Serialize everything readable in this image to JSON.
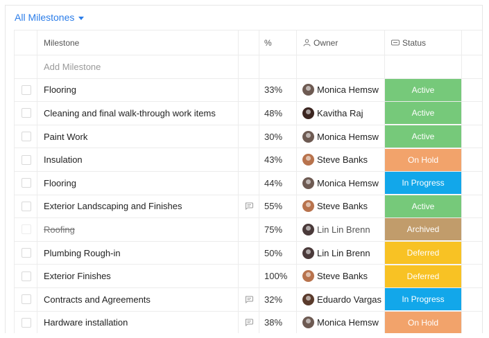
{
  "view": {
    "label": "All Milestones"
  },
  "columns": {
    "milestone": "Milestone",
    "percent": "%",
    "owner": "Owner",
    "status": "Status"
  },
  "add_placeholder": "Add Milestone",
  "colors": {
    "accent": "#2b7de9",
    "active": "#76c97a",
    "on_hold": "#f2a36b",
    "in_progress": "#12a7ea",
    "archived": "#c19c6b",
    "deferred": "#f8c224"
  },
  "rows": [
    {
      "name": "Flooring",
      "note": false,
      "percent": "33%",
      "owner": "Monica Hemsw",
      "avatar_color": "#6d5a52",
      "status": "Active",
      "status_color": "#76c97a"
    },
    {
      "name": "Cleaning and final walk-through work items",
      "note": false,
      "percent": "48%",
      "owner": "Kavitha Raj",
      "avatar_color": "#3b2520",
      "status": "Active",
      "status_color": "#76c97a"
    },
    {
      "name": "Paint Work",
      "note": false,
      "percent": "30%",
      "owner": "Monica Hemsw",
      "avatar_color": "#6d5a52",
      "status": "Active",
      "status_color": "#76c97a"
    },
    {
      "name": "Insulation",
      "note": false,
      "percent": "43%",
      "owner": "Steve Banks",
      "avatar_color": "#b8734d",
      "status": "On Hold",
      "status_color": "#f2a36b"
    },
    {
      "name": "Flooring",
      "note": false,
      "percent": "44%",
      "owner": "Monica Hemsw",
      "avatar_color": "#6d5a52",
      "status": "In Progress",
      "status_color": "#12a7ea"
    },
    {
      "name": "Exterior Landscaping and Finishes",
      "note": true,
      "percent": "55%",
      "owner": "Steve Banks",
      "avatar_color": "#b8734d",
      "status": "Active",
      "status_color": "#76c97a"
    },
    {
      "name": "Roofing",
      "note": false,
      "percent": "75%",
      "owner": "Lin Lin Brenn",
      "avatar_color": "#4a3a3a",
      "status": "Archived",
      "status_color": "#c19c6b",
      "archived": true
    },
    {
      "name": "Plumbing Rough-in",
      "note": false,
      "percent": "50%",
      "owner": "Lin Lin Brenn",
      "avatar_color": "#4a3a3a",
      "status": "Deferred",
      "status_color": "#f8c224"
    },
    {
      "name": "Exterior Finishes",
      "note": false,
      "percent": "100%",
      "owner": "Steve Banks",
      "avatar_color": "#b8734d",
      "status": "Deferred",
      "status_color": "#f8c224"
    },
    {
      "name": "Contracts and Agreements",
      "note": true,
      "percent": "32%",
      "owner": "Eduardo Vargas",
      "avatar_color": "#5a3b2c",
      "status": "In Progress",
      "status_color": "#12a7ea"
    },
    {
      "name": "Hardware installation",
      "note": true,
      "percent": "38%",
      "owner": "Monica Hemsw",
      "avatar_color": "#6d5a52",
      "status": "On Hold",
      "status_color": "#f2a36b"
    }
  ]
}
